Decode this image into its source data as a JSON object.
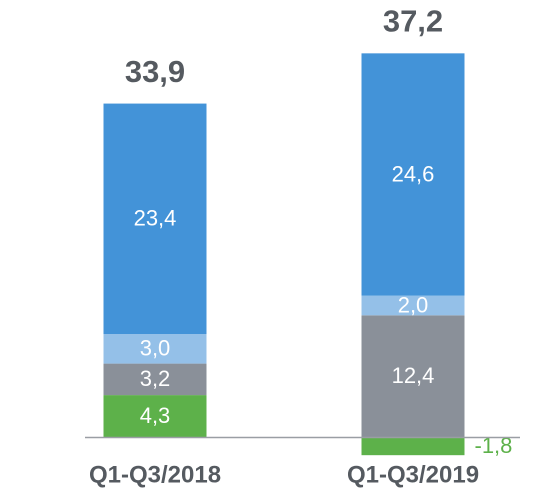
{
  "chart_data": {
    "type": "stacked_bar",
    "categories": [
      "Q1-Q3/2018",
      "Q1-Q3/2019"
    ],
    "series": [
      {
        "color": "#5db14a",
        "values": [
          4.3,
          -1.8
        ],
        "value_labels": [
          "4,3",
          "-1,8"
        ]
      },
      {
        "color": "#8a9099",
        "values": [
          3.2,
          12.4
        ],
        "value_labels": [
          "3,2",
          "12,4"
        ]
      },
      {
        "color": "#94c0e8",
        "values": [
          3.0,
          2.0
        ],
        "value_labels": [
          "3,0",
          "2,0"
        ]
      },
      {
        "color": "#4393d8",
        "values": [
          23.4,
          24.6
        ],
        "value_labels": [
          "23,4",
          "24,6"
        ]
      }
    ],
    "totals": {
      "values": [
        33.9,
        37.2
      ],
      "value_labels": [
        "33,9",
        "37,2"
      ]
    },
    "ylim": [
      -5,
      40
    ]
  }
}
